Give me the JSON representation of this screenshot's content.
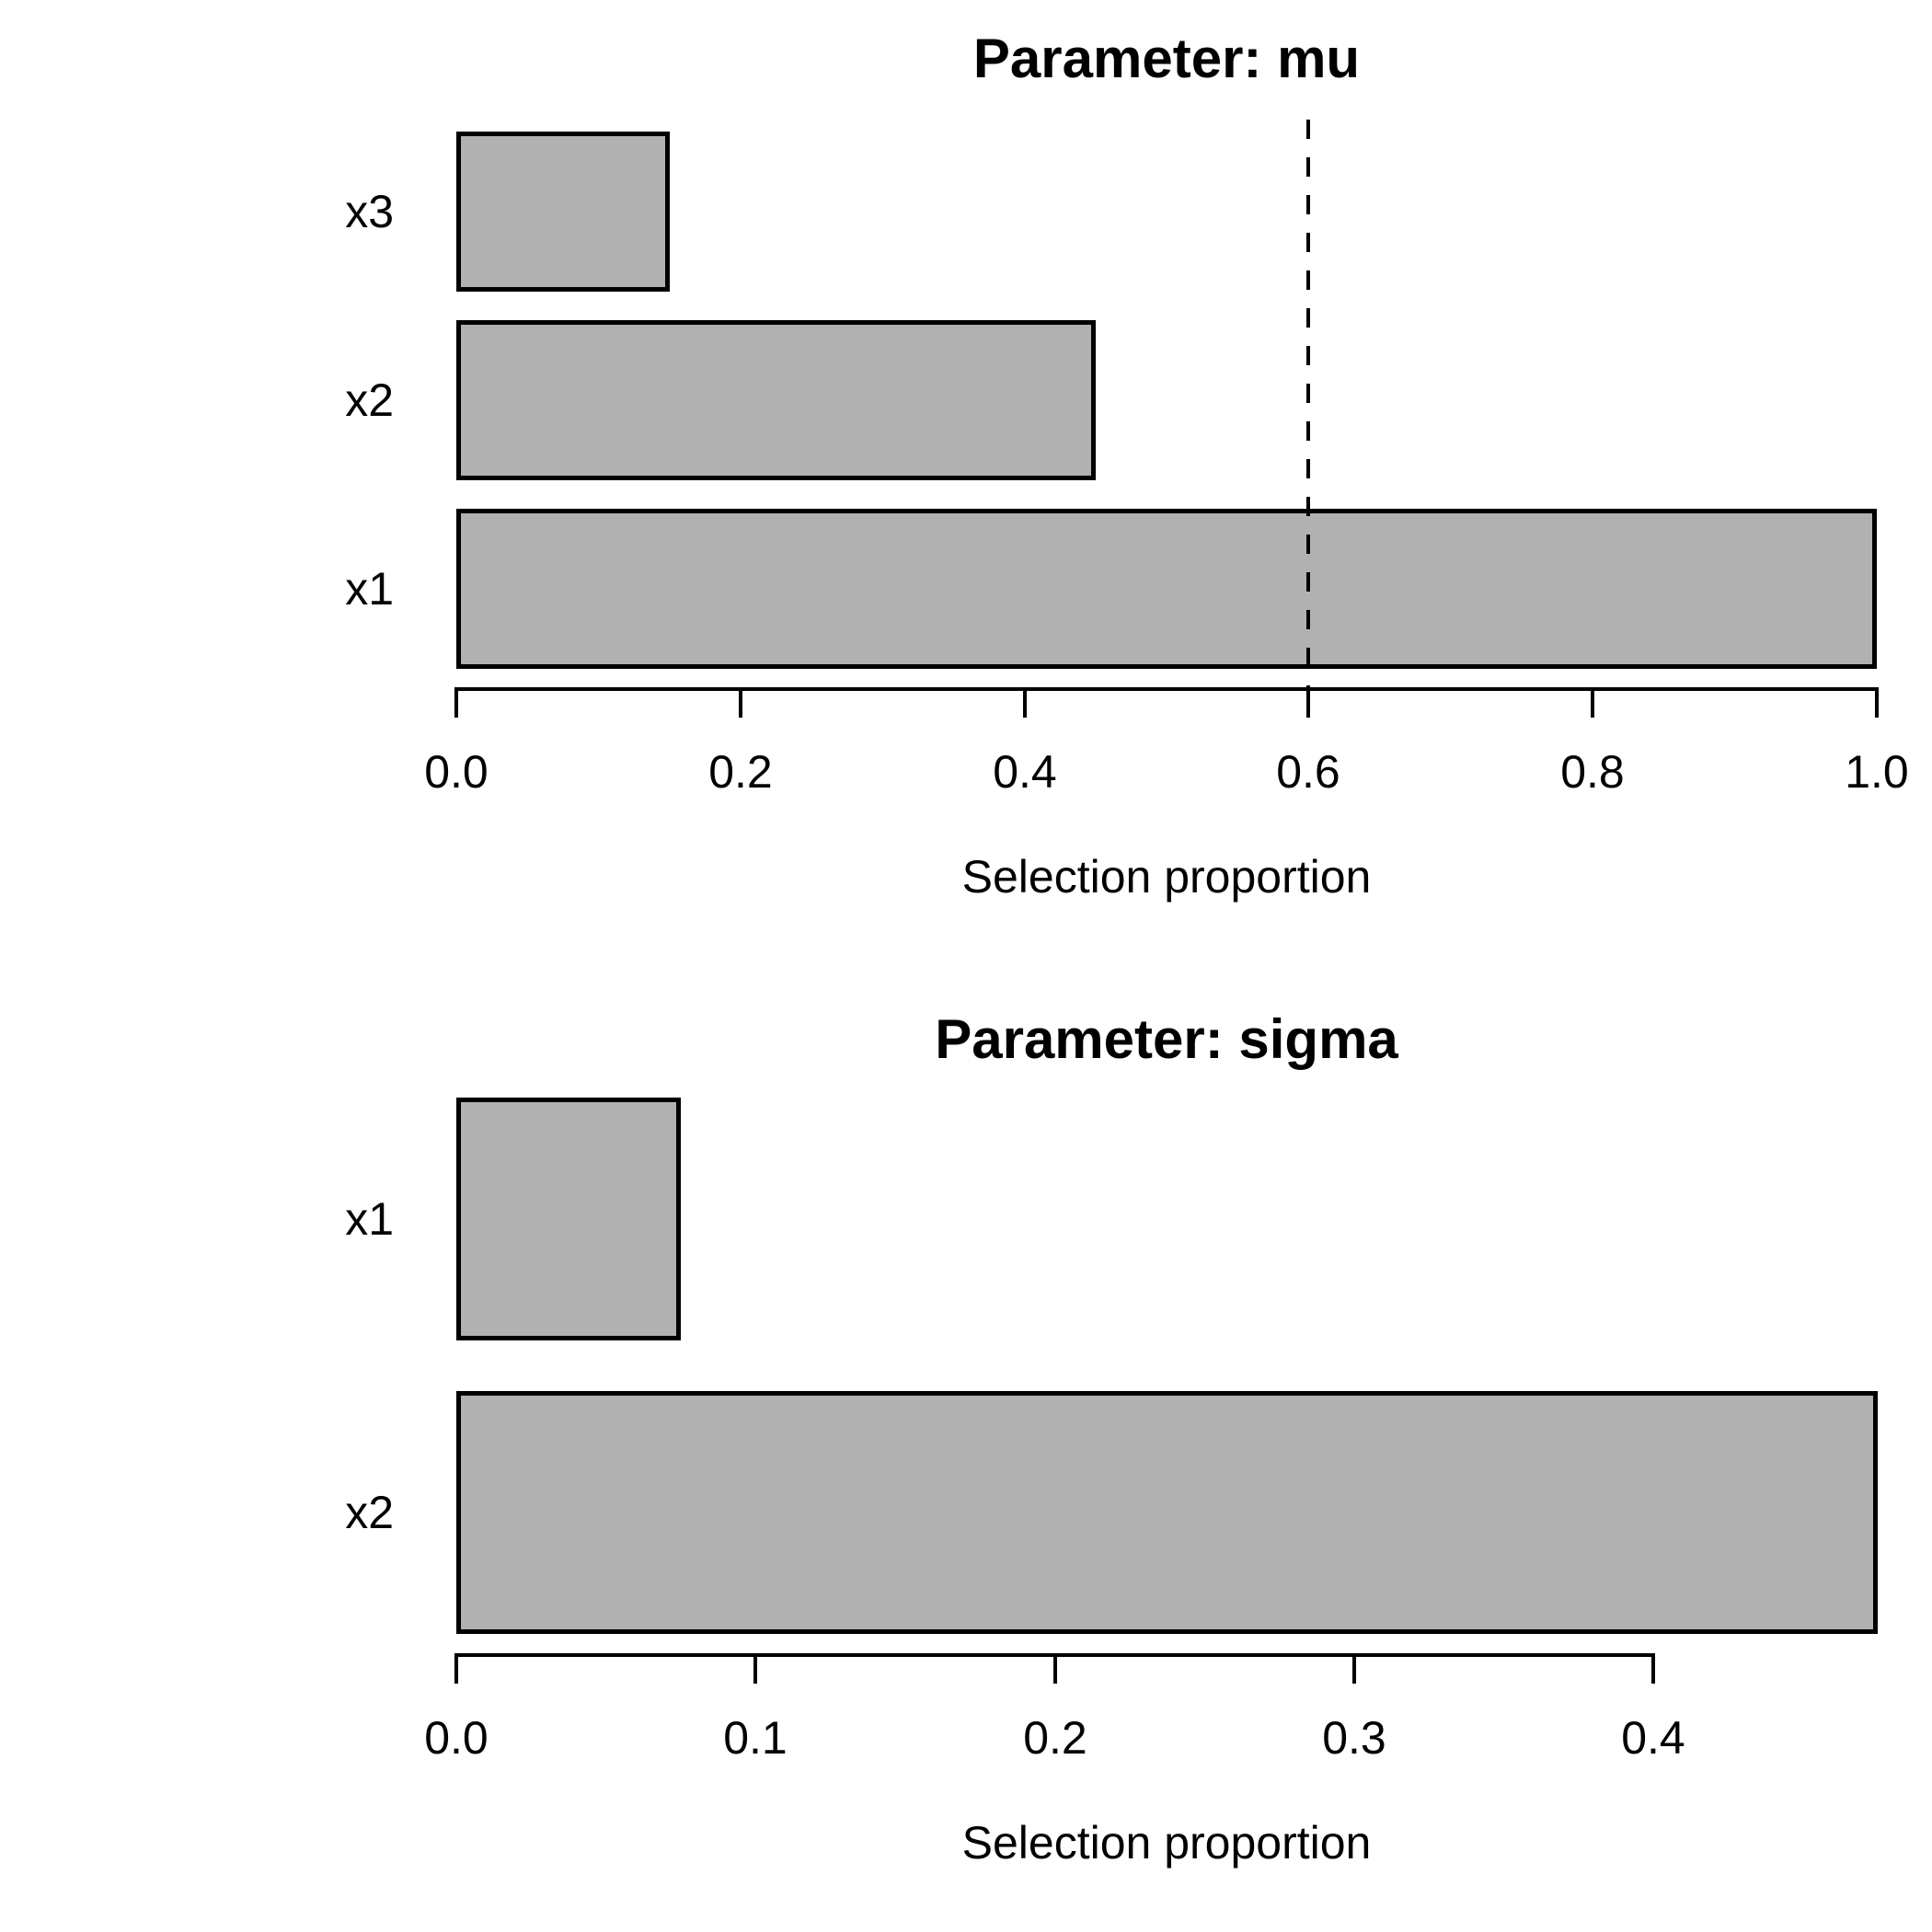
{
  "figure": {
    "background": "#ffffff",
    "bar_fill": "#b1b1b1",
    "bar_border": "#000000",
    "text_color": "#000000"
  },
  "chart_data": [
    {
      "type": "bar",
      "orientation": "horizontal",
      "title": "Parameter: mu",
      "xlabel": "Selection proportion",
      "categories": [
        "x3",
        "x2",
        "x1"
      ],
      "values": [
        0.15,
        0.45,
        1.0
      ],
      "x_ticks": [
        0.0,
        0.2,
        0.4,
        0.6,
        0.8,
        1.0
      ],
      "x_tick_labels": [
        "0.0",
        "0.2",
        "0.4",
        "0.6",
        "0.8",
        "1.0"
      ],
      "xlim": [
        0,
        1.0
      ],
      "grid": false,
      "legend": "none",
      "reference_line": {
        "value": 0.6,
        "style": "dashed",
        "color": "#000000"
      }
    },
    {
      "type": "bar",
      "orientation": "horizontal",
      "title": "Parameter: sigma",
      "xlabel": "Selection proportion",
      "categories": [
        "x1",
        "x2"
      ],
      "values": [
        0.075,
        0.475
      ],
      "x_ticks": [
        0.0,
        0.1,
        0.2,
        0.3,
        0.4
      ],
      "x_tick_labels": [
        "0.0",
        "0.1",
        "0.2",
        "0.3",
        "0.4"
      ],
      "xlim": [
        0,
        0.475
      ],
      "grid": false,
      "legend": "none",
      "reference_line": null
    }
  ]
}
